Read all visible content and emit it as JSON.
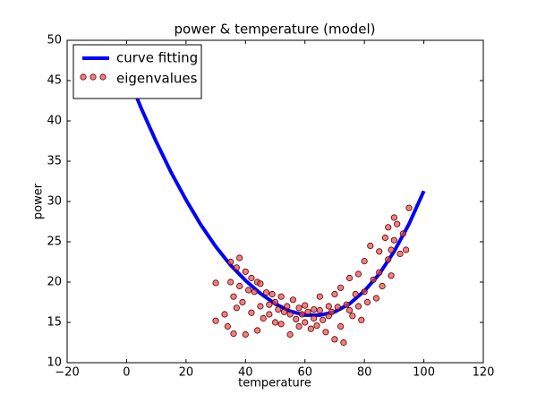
{
  "chart_data": {
    "type": "scatter",
    "title": "power & temperature (model)",
    "x_label": "temperature",
    "y_label": "power",
    "xlim": [
      -20,
      120
    ],
    "ylim": [
      10,
      50
    ],
    "xticks": [
      {
        "value": -20,
        "label": "−20"
      },
      0,
      20,
      40,
      60,
      80,
      100,
      120
    ],
    "yticks": [
      10,
      15,
      20,
      25,
      30,
      35,
      40,
      45,
      50
    ],
    "legend": "upper left",
    "series": [
      {
        "name": "curve fitting",
        "type": "line",
        "color": "#0000ff",
        "x": [
          0,
          5,
          10,
          15,
          20,
          25,
          30,
          35,
          40,
          45,
          50,
          55,
          60,
          65,
          70,
          75,
          80,
          85,
          90,
          95,
          100
        ],
        "values": [
          46,
          41.5,
          37.4,
          33.6,
          30.2,
          27.1,
          24.4,
          22.1,
          20.2,
          18.6,
          17.3,
          16.4,
          15.9,
          15.9,
          16.3,
          17.3,
          18.9,
          21.0,
          23.8,
          27.2,
          31.3
        ]
      },
      {
        "name": "eigenvalues",
        "type": "scatter",
        "color": "#e8484a",
        "x": [
          30,
          30,
          33,
          34,
          35,
          35,
          36,
          36,
          37,
          37,
          38,
          38,
          39,
          40,
          40,
          41,
          42,
          42,
          43,
          44,
          44,
          45,
          45,
          46,
          47,
          48,
          48,
          49,
          50,
          50,
          51,
          52,
          52,
          53,
          54,
          55,
          55,
          56,
          57,
          58,
          58,
          59,
          60,
          60,
          61,
          62,
          63,
          63,
          64,
          65,
          65,
          66,
          67,
          68,
          68,
          69,
          70,
          70,
          71,
          72,
          72,
          73,
          74,
          75,
          75,
          76,
          77,
          78,
          78,
          79,
          80,
          80,
          81,
          82,
          83,
          84,
          85,
          85,
          86,
          87,
          88,
          88,
          89,
          89,
          90,
          90,
          91,
          92,
          93,
          94,
          95
        ],
        "values": [
          19.9,
          15.2,
          16.0,
          14.5,
          22.5,
          20.0,
          13.6,
          18.2,
          21.8,
          16.8,
          19.5,
          23.0,
          17.5,
          21.3,
          13.5,
          19.0,
          16.2,
          20.5,
          18.8,
          14.0,
          20.0,
          19.8,
          17.0,
          15.5,
          18.7,
          17.2,
          16.0,
          18.5,
          15.0,
          17.5,
          16.6,
          18.2,
          14.8,
          16.3,
          17.0,
          13.5,
          16.0,
          17.8,
          15.4,
          16.8,
          14.5,
          16.0,
          15.0,
          17.1,
          16.3,
          14.2,
          16.6,
          15.5,
          14.6,
          16.5,
          18.2,
          15.3,
          13.8,
          17.0,
          15.8,
          16.3,
          12.9,
          18.5,
          16.9,
          14.5,
          19.3,
          12.5,
          17.2,
          16.5,
          20.5,
          15.8,
          18.5,
          17.0,
          21.0,
          15.3,
          22.6,
          18.8,
          17.5,
          24.5,
          20.3,
          18.0,
          23.8,
          21.2,
          19.5,
          25.5,
          22.8,
          26.8,
          24.0,
          20.8,
          28.0,
          25.2,
          27.2,
          23.5,
          26.0,
          24.0,
          29.2
        ]
      }
    ]
  }
}
